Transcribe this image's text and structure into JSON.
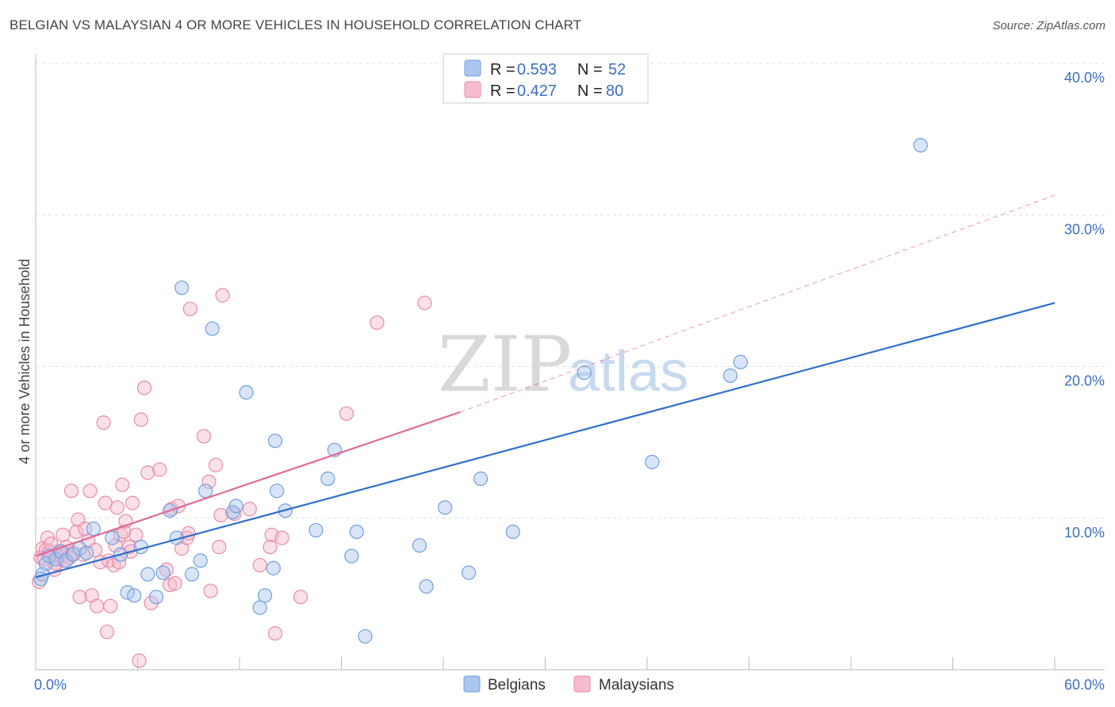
{
  "title": "BELGIAN VS MALAYSIAN 4 OR MORE VEHICLES IN HOUSEHOLD CORRELATION CHART",
  "source": "Source: ZipAtlas.com",
  "colors": {
    "belgian": "#6f9fe0",
    "belgian_fill": "#aac6ee",
    "belgian_line": "#2f6fcc",
    "malaysian": "#e98aa8",
    "malaysian_fill": "#f5bccd",
    "malaysian_line": "#e06a93",
    "tick": "#3b6fc4",
    "grid": "#dddddd"
  },
  "legend": {
    "rows": [
      {
        "r_label": "R = ",
        "r_value": "0.593",
        "n_label": "N = ",
        "n_value": "52",
        "series": "belgian"
      },
      {
        "r_label": "R = ",
        "r_value": "0.427",
        "n_label": "N = ",
        "n_value": "80",
        "series": "malaysian"
      }
    ]
  },
  "bottom_legend": [
    "Belgians",
    "Malaysians"
  ],
  "watermark": {
    "zip": "ZIP",
    "atlas": "atlas"
  },
  "chart_data": {
    "type": "scatter",
    "title": "BELGIAN VS MALAYSIAN 4 OR MORE VEHICLES IN HOUSEHOLD CORRELATION CHART",
    "xlabel": "",
    "ylabel": "4 or more Vehicles in Household",
    "xlim": [
      0,
      60
    ],
    "ylim": [
      0,
      40
    ],
    "x_tick_labels": [
      "0.0%",
      "60.0%"
    ],
    "y_ticks": [
      10,
      20,
      30,
      40
    ],
    "y_tick_labels": [
      "10.0%",
      "20.0%",
      "30.0%",
      "40.0%"
    ],
    "x_minor_ticks": [
      6,
      12,
      18,
      24,
      30,
      36,
      42,
      48,
      54,
      60
    ],
    "grid": true,
    "series": [
      {
        "name": "Belgians",
        "R": 0.593,
        "N": 52,
        "trend": {
          "x": [
            0,
            60
          ],
          "y": [
            6.1,
            24.2
          ],
          "style": "solid"
        },
        "points": [
          [
            0.4,
            6.3
          ],
          [
            0.6,
            7.0
          ],
          [
            0.8,
            7.5
          ],
          [
            1.2,
            7.3
          ],
          [
            1.5,
            7.8
          ],
          [
            1.8,
            7.2
          ],
          [
            2.2,
            7.6
          ],
          [
            2.6,
            8.0
          ],
          [
            3.0,
            7.7
          ],
          [
            3.4,
            9.3
          ],
          [
            4.5,
            8.7
          ],
          [
            5.0,
            7.6
          ],
          [
            5.4,
            5.1
          ],
          [
            5.8,
            4.9
          ],
          [
            6.2,
            8.1
          ],
          [
            6.6,
            6.3
          ],
          [
            7.1,
            4.8
          ],
          [
            7.5,
            6.4
          ],
          [
            7.9,
            10.5
          ],
          [
            8.3,
            8.7
          ],
          [
            8.6,
            25.2
          ],
          [
            9.2,
            6.3
          ],
          [
            9.7,
            7.2
          ],
          [
            10.0,
            11.8
          ],
          [
            10.4,
            22.5
          ],
          [
            11.6,
            10.4
          ],
          [
            11.8,
            10.8
          ],
          [
            12.4,
            18.3
          ],
          [
            13.2,
            4.1
          ],
          [
            13.5,
            4.9
          ],
          [
            14.0,
            6.7
          ],
          [
            14.1,
            15.1
          ],
          [
            14.2,
            11.8
          ],
          [
            14.7,
            10.5
          ],
          [
            16.5,
            9.2
          ],
          [
            17.2,
            12.6
          ],
          [
            17.6,
            14.5
          ],
          [
            18.6,
            7.5
          ],
          [
            18.9,
            9.1
          ],
          [
            19.4,
            2.2
          ],
          [
            22.6,
            8.2
          ],
          [
            23.0,
            5.5
          ],
          [
            24.1,
            10.7
          ],
          [
            25.5,
            6.4
          ],
          [
            26.2,
            12.6
          ],
          [
            28.1,
            9.1
          ],
          [
            32.3,
            19.6
          ],
          [
            36.3,
            13.7
          ],
          [
            40.9,
            19.4
          ],
          [
            41.5,
            20.3
          ],
          [
            52.1,
            34.6
          ],
          [
            0.3,
            6.0
          ]
        ]
      },
      {
        "name": "Malaysians",
        "R": 0.427,
        "N": 80,
        "trend": {
          "x": [
            0,
            25
          ],
          "y": [
            7.5,
            17.0
          ],
          "style": "solid"
        },
        "trend_extension": {
          "x": [
            25,
            60
          ],
          "y": [
            17.0,
            31.3
          ],
          "style": "dashed"
        },
        "points": [
          [
            0.2,
            5.8
          ],
          [
            0.3,
            7.4
          ],
          [
            0.4,
            8.0
          ],
          [
            0.5,
            7.3
          ],
          [
            0.6,
            7.9
          ],
          [
            0.7,
            8.7
          ],
          [
            0.8,
            7.8
          ],
          [
            0.9,
            8.3
          ],
          [
            1.0,
            7.5
          ],
          [
            1.1,
            6.6
          ],
          [
            1.2,
            7.0
          ],
          [
            1.4,
            7.8
          ],
          [
            1.5,
            7.5
          ],
          [
            1.6,
            8.9
          ],
          [
            1.7,
            7.2
          ],
          [
            1.8,
            8.1
          ],
          [
            2.0,
            7.4
          ],
          [
            2.1,
            11.8
          ],
          [
            2.2,
            7.7
          ],
          [
            2.4,
            9.1
          ],
          [
            2.5,
            9.9
          ],
          [
            2.6,
            4.8
          ],
          [
            2.8,
            7.6
          ],
          [
            2.9,
            9.3
          ],
          [
            3.1,
            8.5
          ],
          [
            3.2,
            11.8
          ],
          [
            3.3,
            4.9
          ],
          [
            3.5,
            7.9
          ],
          [
            3.6,
            4.2
          ],
          [
            3.8,
            7.1
          ],
          [
            4.0,
            16.3
          ],
          [
            4.1,
            11.0
          ],
          [
            4.2,
            2.5
          ],
          [
            4.3,
            7.2
          ],
          [
            4.4,
            4.2
          ],
          [
            4.6,
            6.9
          ],
          [
            4.7,
            8.2
          ],
          [
            4.8,
            10.7
          ],
          [
            4.9,
            7.1
          ],
          [
            5.0,
            8.9
          ],
          [
            5.1,
            12.2
          ],
          [
            5.2,
            9.1
          ],
          [
            5.3,
            9.8
          ],
          [
            5.5,
            8.1
          ],
          [
            5.6,
            7.8
          ],
          [
            5.7,
            11.0
          ],
          [
            5.9,
            8.9
          ],
          [
            6.1,
            0.6
          ],
          [
            6.2,
            16.5
          ],
          [
            6.4,
            18.6
          ],
          [
            6.6,
            13.0
          ],
          [
            6.8,
            4.4
          ],
          [
            7.3,
            13.2
          ],
          [
            7.7,
            6.6
          ],
          [
            7.9,
            5.6
          ],
          [
            8.0,
            10.6
          ],
          [
            8.2,
            5.7
          ],
          [
            8.4,
            10.8
          ],
          [
            8.6,
            8.0
          ],
          [
            8.9,
            8.7
          ],
          [
            9.0,
            9.0
          ],
          [
            9.1,
            23.8
          ],
          [
            9.9,
            15.4
          ],
          [
            10.2,
            12.4
          ],
          [
            10.3,
            5.2
          ],
          [
            10.6,
            13.5
          ],
          [
            10.8,
            8.1
          ],
          [
            11.0,
            24.7
          ],
          [
            11.7,
            10.3
          ],
          [
            13.2,
            6.9
          ],
          [
            13.8,
            8.1
          ],
          [
            13.9,
            8.9
          ],
          [
            14.1,
            2.4
          ],
          [
            14.5,
            8.7
          ],
          [
            15.6,
            4.8
          ],
          [
            18.3,
            16.9
          ],
          [
            20.1,
            22.9
          ],
          [
            22.9,
            24.2
          ],
          [
            10.9,
            10.2
          ],
          [
            12.6,
            10.6
          ]
        ]
      }
    ]
  }
}
